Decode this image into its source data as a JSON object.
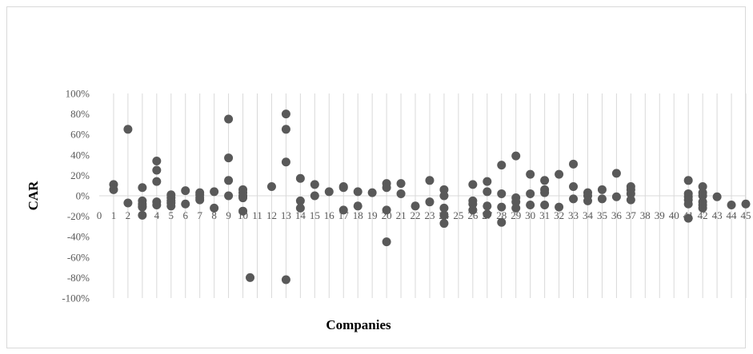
{
  "chart_data": {
    "type": "scatter",
    "title": "",
    "xlabel": "Companies",
    "ylabel": "CAR",
    "xlim": [
      0,
      45
    ],
    "ylim": [
      -1.0,
      1.0
    ],
    "x_ticks": [
      0,
      1,
      2,
      3,
      4,
      5,
      6,
      7,
      8,
      9,
      10,
      11,
      12,
      13,
      14,
      15,
      16,
      17,
      18,
      19,
      20,
      21,
      22,
      23,
      24,
      25,
      26,
      27,
      28,
      29,
      30,
      31,
      32,
      33,
      34,
      35,
      36,
      37,
      38,
      39,
      40,
      41,
      42,
      43,
      44,
      45
    ],
    "y_ticks": [
      "100%",
      "80%",
      "60%",
      "40%",
      "20%",
      "0%",
      "-20%",
      "-40%",
      "-60%",
      "-80%",
      "-100%"
    ],
    "y_tick_values": [
      1.0,
      0.8,
      0.6,
      0.4,
      0.2,
      0.0,
      -0.2,
      -0.4,
      -0.6,
      -0.8,
      -1.0
    ],
    "grid": "vertical",
    "legend": "none",
    "marker_color": "#595959",
    "series": [
      {
        "x": [
          1,
          1,
          2,
          2,
          3,
          3,
          3,
          3,
          3,
          3,
          4,
          4,
          4,
          4,
          4,
          5,
          5,
          5,
          5,
          5,
          6,
          6,
          7,
          7,
          7,
          7,
          8,
          8,
          9,
          9,
          9,
          9,
          10,
          10,
          10,
          10,
          10,
          10.5,
          12,
          13,
          13,
          13,
          13,
          14,
          14,
          14,
          15,
          15,
          16,
          17,
          17,
          17,
          18,
          18,
          19,
          20,
          20,
          20,
          20,
          21,
          21,
          22,
          23,
          23,
          24,
          24,
          24,
          24,
          24,
          26,
          26,
          26,
          26,
          27,
          27,
          27,
          27,
          28,
          28,
          28,
          28,
          29,
          29,
          29,
          29,
          30,
          30,
          30,
          31,
          31,
          31,
          31,
          32,
          32,
          33,
          33,
          33,
          34,
          34,
          34,
          35,
          35,
          36,
          36,
          37,
          37,
          37,
          37,
          41,
          41,
          41,
          41,
          41,
          41,
          42,
          42,
          42,
          42,
          42,
          42,
          43,
          44,
          45
        ],
        "y": [
          0.11,
          0.06,
          0.65,
          -0.07,
          0.08,
          -0.05,
          -0.08,
          -0.1,
          -0.11,
          -0.19,
          0.34,
          0.25,
          0.14,
          -0.06,
          -0.09,
          0.01,
          -0.02,
          -0.05,
          -0.07,
          -0.1,
          0.05,
          -0.08,
          0.03,
          0.01,
          -0.02,
          -0.04,
          0.04,
          -0.12,
          0.75,
          0.37,
          0.15,
          0.0,
          0.06,
          0.03,
          0.0,
          -0.02,
          -0.15,
          -0.8,
          0.09,
          0.8,
          0.65,
          0.33,
          -0.82,
          0.17,
          -0.05,
          -0.12,
          0.11,
          0.0,
          0.04,
          0.09,
          0.08,
          -0.14,
          0.04,
          -0.1,
          0.03,
          0.12,
          0.08,
          -0.14,
          -0.45,
          0.12,
          0.02,
          -0.1,
          0.15,
          -0.06,
          0.06,
          0.0,
          -0.12,
          -0.19,
          -0.27,
          0.11,
          -0.05,
          -0.08,
          -0.14,
          0.14,
          0.04,
          -0.1,
          -0.18,
          0.3,
          0.02,
          -0.11,
          -0.26,
          0.39,
          -0.02,
          -0.06,
          -0.12,
          0.21,
          0.02,
          -0.09,
          0.15,
          0.06,
          0.03,
          -0.09,
          0.21,
          -0.11,
          0.31,
          0.09,
          -0.03,
          0.03,
          0.0,
          -0.05,
          0.06,
          -0.03,
          0.22,
          -0.01,
          0.09,
          0.06,
          0.02,
          -0.04,
          0.15,
          0.02,
          -0.01,
          -0.04,
          -0.08,
          -0.22,
          0.09,
          0.03,
          0.0,
          -0.06,
          -0.09,
          -0.12,
          -0.01,
          -0.09,
          -0.08
        ]
      }
    ]
  }
}
